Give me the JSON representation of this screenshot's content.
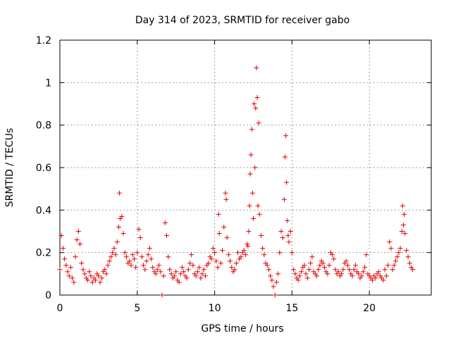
{
  "chart_data": {
    "type": "scatter",
    "title": "Day 314 of 2023, SRMTID for receiver gabo",
    "xlabel": "GPS time / hours",
    "ylabel": "SRMTID / TECUs",
    "xlim": [
      0,
      24
    ],
    "ylim": [
      0,
      1.2
    ],
    "xticks": [
      0,
      5,
      10,
      15,
      20
    ],
    "xtick_labels": [
      "0",
      "5",
      "10",
      "15",
      "20"
    ],
    "yticks": [
      0,
      0.2,
      0.4,
      0.6,
      0.8,
      1.0,
      1.2
    ],
    "ytick_labels": [
      "0",
      "0.2",
      "0.4",
      "0.6",
      "0.8",
      "1",
      "1.2"
    ],
    "grid": true,
    "marker": "+",
    "color": "#e00000",
    "series": [
      {
        "name": "SRMTID",
        "x": [
          0.0,
          0.1,
          0.2,
          0.3,
          0.4,
          0.5,
          0.6,
          0.7,
          0.8,
          0.9,
          1.0,
          1.1,
          1.2,
          1.3,
          1.4,
          1.5,
          1.6,
          1.7,
          1.8,
          1.9,
          2.0,
          2.1,
          2.2,
          2.3,
          2.4,
          2.5,
          2.6,
          2.7,
          2.8,
          2.9,
          3.0,
          3.1,
          3.2,
          3.3,
          3.4,
          3.5,
          3.6,
          3.7,
          3.8,
          3.85,
          3.9,
          4.0,
          4.1,
          4.2,
          4.3,
          4.4,
          4.5,
          4.6,
          4.7,
          4.8,
          4.9,
          5.0,
          5.1,
          5.2,
          5.3,
          5.4,
          5.5,
          5.6,
          5.7,
          5.8,
          5.9,
          6.0,
          6.1,
          6.2,
          6.3,
          6.4,
          6.5,
          6.6,
          6.7,
          6.8,
          6.9,
          7.0,
          7.1,
          7.2,
          7.3,
          7.4,
          7.5,
          7.6,
          7.7,
          7.8,
          7.9,
          8.0,
          8.1,
          8.2,
          8.3,
          8.4,
          8.5,
          8.6,
          8.7,
          8.8,
          8.9,
          9.0,
          9.1,
          9.2,
          9.3,
          9.4,
          9.5,
          9.6,
          9.7,
          9.8,
          9.9,
          10.0,
          10.1,
          10.2,
          10.25,
          10.3,
          10.4,
          10.5,
          10.6,
          10.7,
          10.75,
          10.8,
          10.9,
          11.0,
          11.1,
          11.2,
          11.3,
          11.4,
          11.5,
          11.6,
          11.7,
          11.8,
          11.9,
          12.0,
          12.1,
          12.15,
          12.2,
          12.25,
          12.3,
          12.35,
          12.4,
          12.45,
          12.5,
          12.55,
          12.6,
          12.65,
          12.7,
          12.75,
          12.8,
          12.85,
          12.9,
          13.0,
          13.1,
          13.2,
          13.3,
          13.4,
          13.5,
          13.6,
          13.7,
          13.8,
          13.9,
          14.0,
          14.1,
          14.2,
          14.3,
          14.4,
          14.5,
          14.55,
          14.6,
          14.65,
          14.7,
          14.75,
          14.8,
          14.9,
          15.0,
          15.1,
          15.2,
          15.3,
          15.4,
          15.5,
          15.6,
          15.7,
          15.8,
          15.9,
          16.0,
          16.1,
          16.2,
          16.3,
          16.4,
          16.5,
          16.6,
          16.7,
          16.8,
          16.9,
          17.0,
          17.1,
          17.2,
          17.3,
          17.4,
          17.5,
          17.6,
          17.7,
          17.8,
          17.9,
          18.0,
          18.1,
          18.2,
          18.3,
          18.4,
          18.5,
          18.6,
          18.7,
          18.8,
          18.9,
          19.0,
          19.1,
          19.2,
          19.3,
          19.4,
          19.5,
          19.6,
          19.7,
          19.8,
          19.9,
          20.0,
          20.1,
          20.2,
          20.3,
          20.4,
          20.5,
          20.6,
          20.7,
          20.8,
          20.9,
          21.0,
          21.1,
          21.2,
          21.3,
          21.4,
          21.5,
          21.6,
          21.7,
          21.8,
          21.9,
          22.0,
          22.1,
          22.15,
          22.2,
          22.25,
          22.3,
          22.4,
          22.5,
          22.6,
          22.7,
          22.8
        ],
        "y": [
          0.12,
          0.28,
          0.22,
          0.17,
          0.14,
          0.11,
          0.09,
          0.13,
          0.08,
          0.06,
          0.18,
          0.26,
          0.3,
          0.24,
          0.15,
          0.12,
          0.1,
          0.08,
          0.07,
          0.11,
          0.09,
          0.06,
          0.08,
          0.07,
          0.1,
          0.09,
          0.06,
          0.08,
          0.11,
          0.12,
          0.1,
          0.14,
          0.16,
          0.18,
          0.2,
          0.22,
          0.19,
          0.25,
          0.32,
          0.48,
          0.36,
          0.37,
          0.29,
          0.2,
          0.18,
          0.15,
          0.16,
          0.14,
          0.19,
          0.17,
          0.13,
          0.2,
          0.31,
          0.27,
          0.18,
          0.14,
          0.12,
          0.16,
          0.19,
          0.22,
          0.17,
          0.13,
          0.11,
          0.1,
          0.12,
          0.14,
          0.11,
          0.0,
          0.09,
          0.34,
          0.28,
          0.18,
          0.12,
          0.1,
          0.08,
          0.09,
          0.11,
          0.07,
          0.06,
          0.1,
          0.13,
          0.11,
          0.09,
          0.08,
          0.12,
          0.15,
          0.19,
          0.14,
          0.1,
          0.09,
          0.11,
          0.13,
          0.08,
          0.1,
          0.12,
          0.09,
          0.14,
          0.15,
          0.18,
          0.17,
          0.22,
          0.2,
          0.16,
          0.13,
          0.38,
          0.29,
          0.15,
          0.21,
          0.32,
          0.48,
          0.45,
          0.27,
          0.19,
          0.16,
          0.13,
          0.11,
          0.12,
          0.15,
          0.2,
          0.17,
          0.18,
          0.2,
          0.21,
          0.19,
          0.24,
          0.23,
          0.3,
          0.42,
          0.57,
          0.66,
          0.78,
          0.48,
          0.36,
          0.9,
          0.6,
          0.88,
          1.07,
          0.93,
          0.42,
          0.81,
          0.38,
          0.28,
          0.22,
          0.19,
          0.15,
          0.14,
          0.12,
          0.09,
          0.07,
          0.04,
          0.0,
          0.06,
          0.1,
          0.2,
          0.3,
          0.27,
          0.45,
          0.65,
          0.75,
          0.53,
          0.35,
          0.28,
          0.25,
          0.3,
          0.2,
          0.12,
          0.1,
          0.08,
          0.07,
          0.09,
          0.11,
          0.13,
          0.14,
          0.1,
          0.08,
          0.12,
          0.15,
          0.18,
          0.11,
          0.1,
          0.09,
          0.12,
          0.14,
          0.16,
          0.15,
          0.13,
          0.11,
          0.1,
          0.14,
          0.2,
          0.19,
          0.17,
          0.12,
          0.1,
          0.11,
          0.09,
          0.1,
          0.12,
          0.15,
          0.16,
          0.14,
          0.12,
          0.1,
          0.09,
          0.12,
          0.14,
          0.11,
          0.1,
          0.08,
          0.09,
          0.11,
          0.13,
          0.19,
          0.1,
          0.09,
          0.08,
          0.07,
          0.09,
          0.08,
          0.1,
          0.11,
          0.09,
          0.08,
          0.07,
          0.12,
          0.09,
          0.14,
          0.25,
          0.22,
          0.12,
          0.14,
          0.16,
          0.18,
          0.2,
          0.22,
          0.3,
          0.42,
          0.33,
          0.38,
          0.29,
          0.21,
          0.18,
          0.15,
          0.13,
          0.12
        ]
      }
    ]
  }
}
